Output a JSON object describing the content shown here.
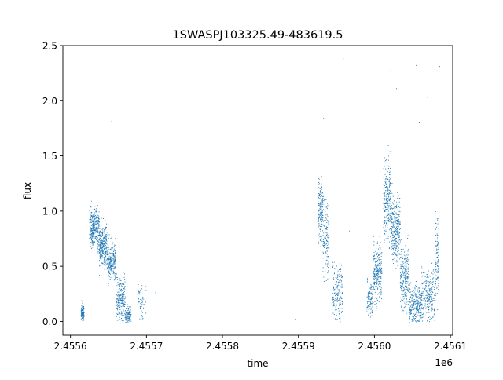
{
  "chart_data": {
    "type": "scatter",
    "title": "1SWASPJ103325.49-483619.5",
    "xlabel": "time",
    "ylabel": "flux",
    "x_offset_label": "1e6",
    "xlim": [
      2455590,
      2456103
    ],
    "ylim": [
      -0.125,
      2.5
    ],
    "x_ticks": [
      2455600,
      2455700,
      2455800,
      2455900,
      2456000,
      2456100
    ],
    "x_tick_labels": [
      "2.4556",
      "2.4557",
      "2.4558",
      "2.4559",
      "2.4560",
      "2.4561"
    ],
    "y_ticks": [
      0.0,
      0.5,
      1.0,
      1.5,
      2.0,
      2.5
    ],
    "y_tick_labels": [
      "0.0",
      "0.5",
      "1.0",
      "1.5",
      "2.0",
      "2.5"
    ],
    "grid": false,
    "marker_color": "#1f77b4",
    "series": [
      {
        "clusters": [
          {
            "x_range": [
              2455614,
              2455618
            ],
            "flux_center": 0.08,
            "flux_spread": 0.06,
            "n": 130
          },
          {
            "x_range": [
              2455625,
              2455638
            ],
            "flux_center": 0.85,
            "flux_spread": 0.15,
            "n": 380
          },
          {
            "x_range": [
              2455638,
              2455648
            ],
            "flux_center": 0.68,
            "flux_spread": 0.15,
            "n": 320
          },
          {
            "x_range": [
              2455648,
              2455660
            ],
            "flux_center": 0.55,
            "flux_spread": 0.14,
            "n": 280
          },
          {
            "x_range": [
              2455660,
              2455672
            ],
            "flux_center": 0.2,
            "flux_spread": 0.15,
            "n": 240
          },
          {
            "x_range": [
              2455672,
              2455680
            ],
            "flux_center": 0.05,
            "flux_spread": 0.06,
            "n": 120
          },
          {
            "x_range": [
              2455688,
              2455700
            ],
            "flux_center": 0.18,
            "flux_spread": 0.15,
            "n": 60
          },
          {
            "x_range": [
              2455926,
              2455932
            ],
            "flux_center": 1.0,
            "flux_spread": 0.25,
            "n": 170
          },
          {
            "x_range": [
              2455932,
              2455940
            ],
            "flux_center": 0.75,
            "flux_spread": 0.28,
            "n": 150
          },
          {
            "x_range": [
              2455945,
              2455958
            ],
            "flux_center": 0.28,
            "flux_spread": 0.2,
            "n": 180
          },
          {
            "x_range": [
              2455990,
              2455998
            ],
            "flux_center": 0.2,
            "flux_spread": 0.14,
            "n": 110
          },
          {
            "x_range": [
              2455998,
              2456010
            ],
            "flux_center": 0.45,
            "flux_spread": 0.22,
            "n": 280
          },
          {
            "x_range": [
              2456012,
              2456022
            ],
            "flux_center": 1.12,
            "flux_spread": 0.3,
            "n": 280
          },
          {
            "x_range": [
              2456022,
              2456034
            ],
            "flux_center": 0.85,
            "flux_spread": 0.25,
            "n": 300
          },
          {
            "x_range": [
              2456034,
              2456045
            ],
            "flux_center": 0.4,
            "flux_spread": 0.25,
            "n": 240
          },
          {
            "x_range": [
              2456046,
              2456062
            ],
            "flux_center": 0.15,
            "flux_spread": 0.15,
            "n": 280
          },
          {
            "x_range": [
              2456062,
              2456080
            ],
            "flux_center": 0.25,
            "flux_spread": 0.2,
            "n": 240
          },
          {
            "x_range": [
              2456080,
              2456085
            ],
            "flux_center": 0.55,
            "flux_spread": 0.3,
            "n": 130
          }
        ],
        "outliers": [
          {
            "x": 2455654,
            "flux": 1.81
          },
          {
            "x": 2455933,
            "flux": 1.84
          },
          {
            "x": 2455959,
            "flux": 2.38
          },
          {
            "x": 2456021,
            "flux": 2.27
          },
          {
            "x": 2456055,
            "flux": 2.32
          },
          {
            "x": 2456086,
            "flux": 2.31
          },
          {
            "x": 2456070,
            "flux": 2.03
          },
          {
            "x": 2456029,
            "flux": 2.11
          },
          {
            "x": 2456059,
            "flux": 1.8
          },
          {
            "x": 2455967,
            "flux": 0.82
          },
          {
            "x": 2455712,
            "flux": 0.26
          },
          {
            "x": 2455896,
            "flux": 0.02
          }
        ]
      }
    ]
  }
}
